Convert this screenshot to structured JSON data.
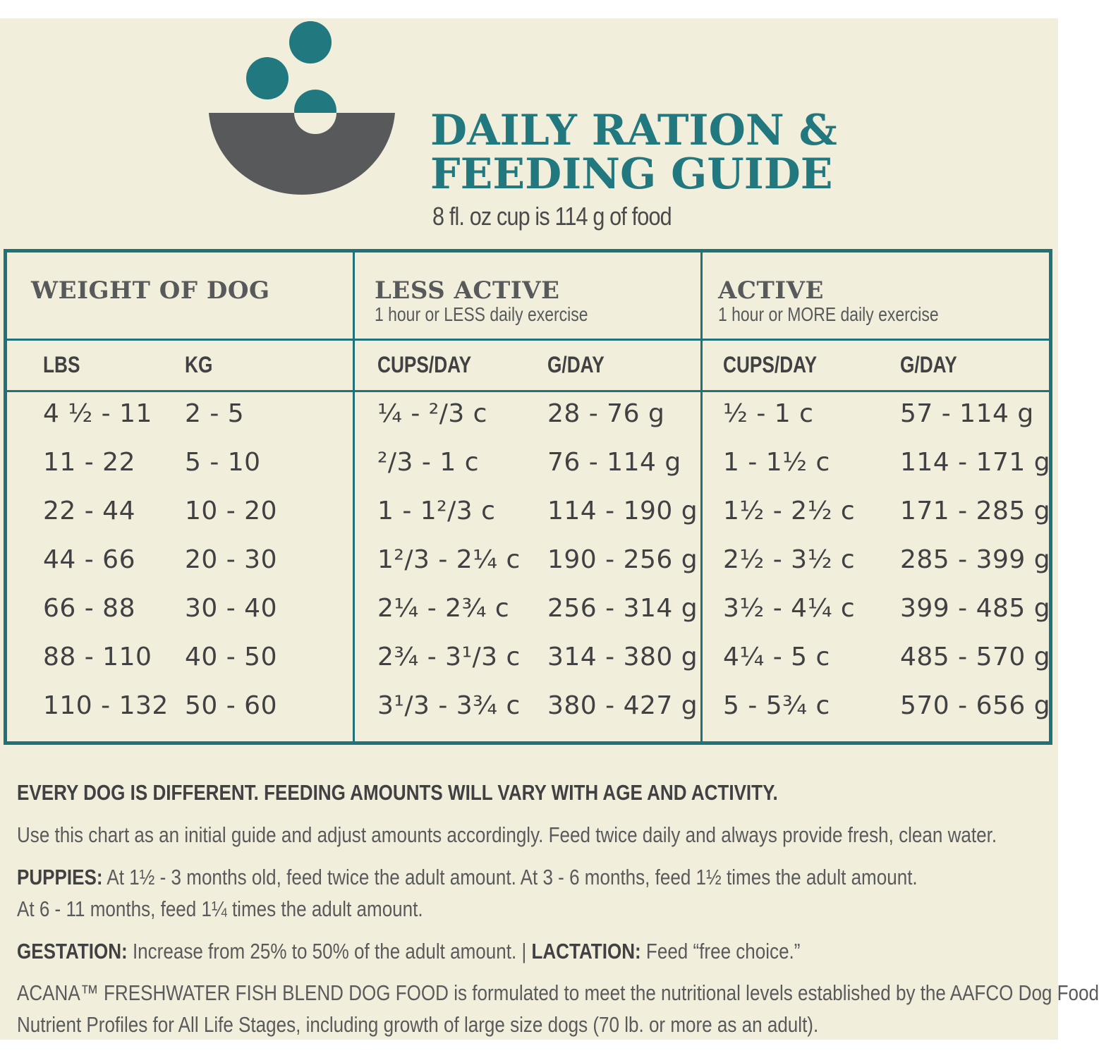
{
  "header": {
    "title_line1": "DAILY RATION &",
    "title_line2": "FEEDING GUIDE",
    "subtitle": "8 fl. oz cup is 114 g of food"
  },
  "colors": {
    "teal": "#22787f",
    "bowl": "#58595b",
    "background": "#f1eedb"
  },
  "table": {
    "groups": [
      {
        "title": "WEIGHT OF DOG",
        "subtitle": ""
      },
      {
        "title": "LESS ACTIVE",
        "subtitle": "1 hour or LESS daily exercise"
      },
      {
        "title": "ACTIVE",
        "subtitle": "1 hour or MORE daily exercise"
      }
    ],
    "columns": [
      "LBS",
      "KG",
      "CUPS/DAY",
      "G/DAY",
      "CUPS/DAY",
      "G/DAY"
    ],
    "rows": [
      [
        "4 ½ - 11",
        "2 - 5",
        "¼ - ²/3 c",
        "28 - 76 g",
        "½ - 1 c",
        "57 - 114 g"
      ],
      [
        "11 - 22",
        "5 - 10",
        "²/3 - 1 c",
        "76 - 114 g",
        "1 - 1½ c",
        "114 - 171 g"
      ],
      [
        "22 - 44",
        "10 - 20",
        "1 - 1²/3 c",
        "114 - 190 g",
        "1½ - 2½ c",
        "171 - 285 g"
      ],
      [
        "44 - 66",
        "20 - 30",
        "1²/3 - 2¼ c",
        "190 - 256 g",
        "2½ - 3½ c",
        "285 - 399 g"
      ],
      [
        "66 - 88",
        "30 - 40",
        "2¼ - 2¾ c",
        "256 - 314 g",
        "3½ - 4¼ c",
        "399 - 485 g"
      ],
      [
        "88 - 110",
        "40 - 50",
        "2¾ - 3¹/3 c",
        "314 - 380 g",
        "4¼ - 5 c",
        "485 - 570 g"
      ],
      [
        "110 - 132",
        "50 - 60",
        "3¹/3 - 3¾ c",
        "380 - 427 g",
        "5 - 5¾ c",
        "570 - 656 g"
      ]
    ]
  },
  "notes": {
    "heading": "EVERY DOG IS DIFFERENT. FEEDING AMOUNTS WILL VARY WITH AGE AND ACTIVITY.",
    "intro": "Use this chart as an initial guide and adjust amounts accordingly. Feed twice daily and always provide fresh, clean water.",
    "puppies_label": "PUPPIES:",
    "puppies_text1": " At 1½ - 3 months old, feed twice the adult amount. At 3 - 6 months, feed 1½ times the adult amount.",
    "puppies_text2": "At 6 - 11 months, feed 1¼ times the adult amount.",
    "gestation_label": "GESTATION:",
    "gestation_text": " Increase from 25% to 50% of the adult amount. | ",
    "lactation_label": "LACTATION:",
    "lactation_text": " Feed “free choice.”",
    "aafco_line1": "ACANA™ FRESHWATER FISH BLEND DOG FOOD is formulated to meet the nutritional levels established by the AAFCO Dog Food",
    "aafco_line2": "Nutrient Profiles for All Life Stages, including growth of large size dogs (70 lb. or more as an adult)."
  }
}
